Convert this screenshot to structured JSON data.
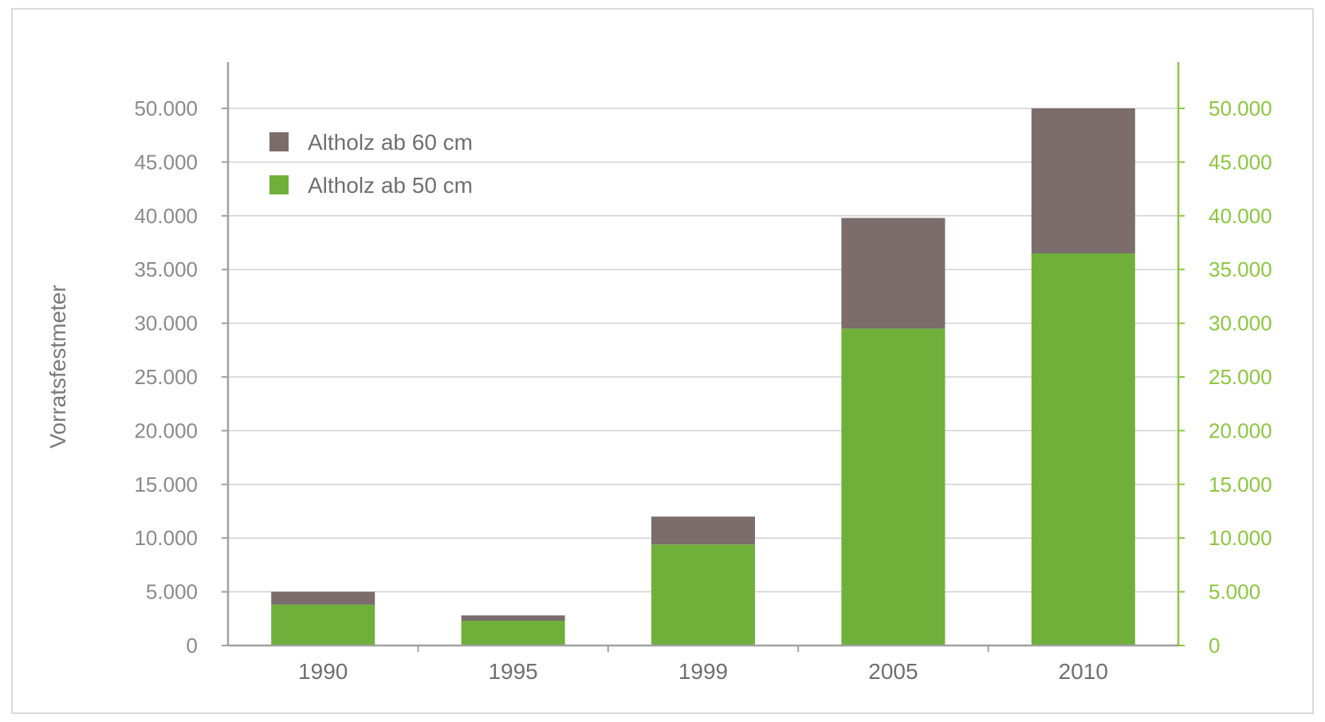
{
  "chart_data": {
    "type": "bar",
    "stacked": true,
    "categories": [
      "1990",
      "1995",
      "1999",
      "2005",
      "2010"
    ],
    "series": [
      {
        "name": "Altholz ab 50 cm",
        "values": [
          3800,
          2300,
          9400,
          29500,
          36500
        ],
        "color": "#6fb03a"
      },
      {
        "name": "Altholz ab 60 cm",
        "values": [
          1200,
          500,
          2600,
          10300,
          13500
        ],
        "color": "#7a6d6b"
      }
    ],
    "ylabel": "Vorratsfestmeter",
    "ylim": [
      0,
      50000
    ],
    "yticks": [
      "0",
      "5.000",
      "10.000",
      "15.000",
      "20.000",
      "25.000",
      "30.000",
      "35.000",
      "40.000",
      "45.000",
      "50.000"
    ],
    "secondary_axis_ticks": [
      "0",
      "5.000",
      "10.000",
      "15.000",
      "20.000",
      "25.000",
      "30.000",
      "35.000",
      "40.000",
      "45.000",
      "50.000"
    ],
    "grid": true,
    "legend_position": "top-left",
    "axis_color": "#a0a0a0",
    "secondary_axis_color": "#8cc63f"
  }
}
